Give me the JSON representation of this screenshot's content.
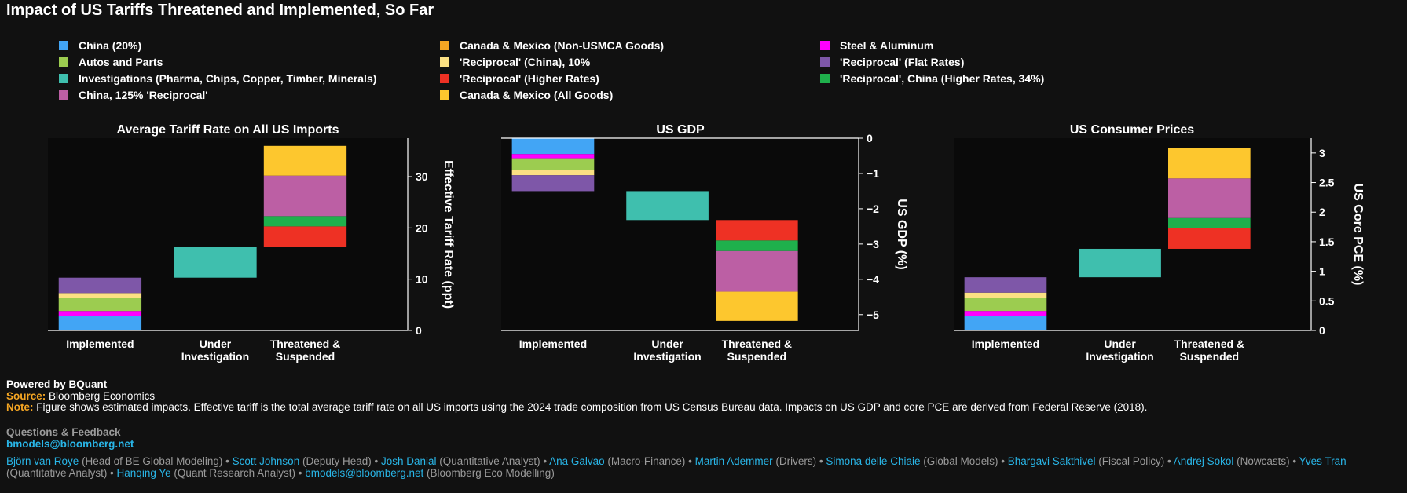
{
  "title": "Impact of US Tariffs Threatened and Implemented, So Far",
  "legend": [
    {
      "label": "China (20%)",
      "color": "#42a5f5"
    },
    {
      "label": "Canada & Mexico (Non-USMCA Goods)",
      "color": "#f5a623"
    },
    {
      "label": "Steel & Aluminum",
      "color": "#ff00ff"
    },
    {
      "label": "Autos and Parts",
      "color": "#9ccc50"
    },
    {
      "label": "'Reciprocal' (China), 10%",
      "color": "#fbe083"
    },
    {
      "label": "'Reciprocal'  (Flat Rates)",
      "color": "#7e57a8"
    },
    {
      "label": "Investigations (Pharma, Chips, Copper, Timber, Minerals)",
      "color": "#3fbfae"
    },
    {
      "label": "'Reciprocal'  (Higher Rates)",
      "color": "#ee3124"
    },
    {
      "label": "'Reciprocal', China (Higher Rates, 34%)",
      "color": "#1fb04c"
    },
    {
      "label": "China, 125% 'Reciprocal'",
      "color": "#bc5fa4"
    },
    {
      "label": "Canada & Mexico (All Goods)",
      "color": "#fdc72e"
    }
  ],
  "chart_data": [
    {
      "type": "bar",
      "title": "Average Tariff Rate on All US Imports",
      "ylabel": "Effective Tariff Rate (ppt)",
      "categories": [
        "Implemented",
        "Under\nInvestigation",
        "Threatened &\nSuspended"
      ],
      "ylim": [
        0,
        37.5
      ],
      "yticks": [
        0,
        10,
        20,
        30
      ],
      "grid": false,
      "stacked_floating": true,
      "segments": [
        {
          "category": 0,
          "series": "China (20%)",
          "from": 0,
          "to": 2.8,
          "color": "#42a5f5"
        },
        {
          "category": 0,
          "series": "Steel & Aluminum",
          "from": 2.8,
          "to": 3.8,
          "color": "#ff00ff"
        },
        {
          "category": 0,
          "series": "Autos and Parts",
          "from": 3.8,
          "to": 6.3,
          "color": "#9ccc50"
        },
        {
          "category": 0,
          "series": "'Reciprocal' (China), 10%",
          "from": 6.3,
          "to": 7.3,
          "color": "#fbe083"
        },
        {
          "category": 0,
          "series": "'Reciprocal'  (Flat Rates)",
          "from": 7.3,
          "to": 10.3,
          "color": "#7e57a8"
        },
        {
          "category": 1,
          "series": "Investigations (Pharma, Chips, Copper, Timber, Minerals)",
          "from": 10.3,
          "to": 16.3,
          "color": "#3fbfae"
        },
        {
          "category": 2,
          "series": "'Reciprocal'  (Higher Rates)",
          "from": 16.3,
          "to": 20.3,
          "color": "#ee3124"
        },
        {
          "category": 2,
          "series": "'Reciprocal', China (Higher Rates, 34%)",
          "from": 20.3,
          "to": 22.3,
          "color": "#1fb04c"
        },
        {
          "category": 2,
          "series": "China, 125% 'Reciprocal'",
          "from": 22.3,
          "to": 30.2,
          "color": "#bc5fa4"
        },
        {
          "category": 2,
          "series": "Canada & Mexico (All Goods)",
          "from": 30.2,
          "to": 36.0,
          "color": "#fdc72e"
        }
      ]
    },
    {
      "type": "bar",
      "title": "US GDP",
      "ylabel": "US GDP (%)",
      "categories": [
        "Implemented",
        "Under\nInvestigation",
        "Threatened &\nSuspended"
      ],
      "ylim": [
        -5.45,
        0
      ],
      "yticks": [
        0,
        -1,
        -2,
        -3,
        -4,
        -5
      ],
      "grid": false,
      "stacked_floating": true,
      "segments": [
        {
          "category": 0,
          "series": "China (20%)",
          "from": 0,
          "to": -0.45,
          "color": "#42a5f5"
        },
        {
          "category": 0,
          "series": "Steel & Aluminum",
          "from": -0.45,
          "to": -0.57,
          "color": "#ff00ff"
        },
        {
          "category": 0,
          "series": "Autos and Parts",
          "from": -0.57,
          "to": -0.9,
          "color": "#9ccc50"
        },
        {
          "category": 0,
          "series": "'Reciprocal' (China), 10%",
          "from": -0.9,
          "to": -1.05,
          "color": "#fbe083"
        },
        {
          "category": 0,
          "series": "'Reciprocal'  (Flat Rates)",
          "from": -1.05,
          "to": -1.5,
          "color": "#7e57a8"
        },
        {
          "category": 1,
          "series": "Investigations (Pharma, Chips, Copper, Timber, Minerals)",
          "from": -1.5,
          "to": -2.32,
          "color": "#3fbfae"
        },
        {
          "category": 2,
          "series": "'Reciprocal'  (Higher Rates)",
          "from": -2.32,
          "to": -2.9,
          "color": "#ee3124"
        },
        {
          "category": 2,
          "series": "'Reciprocal', China (Higher Rates, 34%)",
          "from": -2.9,
          "to": -3.2,
          "color": "#1fb04c"
        },
        {
          "category": 2,
          "series": "China, 125% 'Reciprocal'",
          "from": -3.2,
          "to": -4.35,
          "color": "#bc5fa4"
        },
        {
          "category": 2,
          "series": "Canada & Mexico (All Goods)",
          "from": -4.35,
          "to": -5.18,
          "color": "#fdc72e"
        }
      ]
    },
    {
      "type": "bar",
      "title": "US Consumer Prices",
      "ylabel": "US Core PCE (%)",
      "categories": [
        "Implemented",
        "Under\nInvestigation",
        "Threatened &\nSuspended"
      ],
      "ylim": [
        0,
        3.25
      ],
      "yticks": [
        0,
        0.5,
        1,
        1.5,
        2,
        2.5,
        3
      ],
      "grid": false,
      "stacked_floating": true,
      "segments": [
        {
          "category": 0,
          "series": "China (20%)",
          "from": 0,
          "to": 0.25,
          "color": "#42a5f5"
        },
        {
          "category": 0,
          "series": "Steel & Aluminum",
          "from": 0.25,
          "to": 0.33,
          "color": "#ff00ff"
        },
        {
          "category": 0,
          "series": "Autos and Parts",
          "from": 0.33,
          "to": 0.55,
          "color": "#9ccc50"
        },
        {
          "category": 0,
          "series": "'Reciprocal' (China), 10%",
          "from": 0.55,
          "to": 0.64,
          "color": "#fbe083"
        },
        {
          "category": 0,
          "series": "'Reciprocal'  (Flat Rates)",
          "from": 0.64,
          "to": 0.9,
          "color": "#7e57a8"
        },
        {
          "category": 1,
          "series": "Investigations (Pharma, Chips, Copper, Timber, Minerals)",
          "from": 0.9,
          "to": 1.38,
          "color": "#3fbfae"
        },
        {
          "category": 2,
          "series": "'Reciprocal'  (Higher Rates)",
          "from": 1.38,
          "to": 1.73,
          "color": "#ee3124"
        },
        {
          "category": 2,
          "series": "'Reciprocal', China (Higher Rates, 34%)",
          "from": 1.73,
          "to": 1.9,
          "color": "#1fb04c"
        },
        {
          "category": 2,
          "series": "China, 125% 'Reciprocal'",
          "from": 1.9,
          "to": 2.57,
          "color": "#bc5fa4"
        },
        {
          "category": 2,
          "series": "Canada & Mexico (All Goods)",
          "from": 2.57,
          "to": 3.08,
          "color": "#fdc72e"
        }
      ]
    }
  ],
  "footer": {
    "powered": "Powered by BQuant",
    "source_label": "Source:",
    "source_text": " Bloomberg Economics",
    "note_label": "Note:",
    "note_text": " Figure shows estimated impacts. Effective tariff is the total average tariff rate on all US imports using the 2024 trade composition from US Census Bureau data. Impacts on US GDP and core PCE are derived from Federal Reserve (2018).",
    "questions": "Questions & Feedback",
    "email": "bmodels@bloomberg.net"
  },
  "credits": [
    {
      "name": "Björn van Roye",
      "role": " (Head of BE Global Modeling) • "
    },
    {
      "name": "Scott Johnson",
      "role": " (Deputy Head) • "
    },
    {
      "name": "Josh Danial",
      "role": " (Quantitative Analyst) • "
    },
    {
      "name": "Ana Galvao",
      "role": " (Macro-Finance) • "
    },
    {
      "name": "Martin Ademmer",
      "role": " (Drivers) • "
    },
    {
      "name": "Simona delle Chiaie",
      "role": " (Global Models) • "
    },
    {
      "name": "Bhargavi Sakthivel",
      "role": " (Fiscal Policy) • "
    },
    {
      "name": "Andrej Sokol",
      "role": " (Nowcasts) • "
    },
    {
      "name": "Yves Tran",
      "role": " (Quantitative Analyst) • "
    },
    {
      "name": "Hanqing Ye",
      "role": " (Quant Research Analyst) • "
    },
    {
      "name": "bmodels@bloomberg.net",
      "role": " (Bloomberg Eco Modelling)"
    }
  ]
}
